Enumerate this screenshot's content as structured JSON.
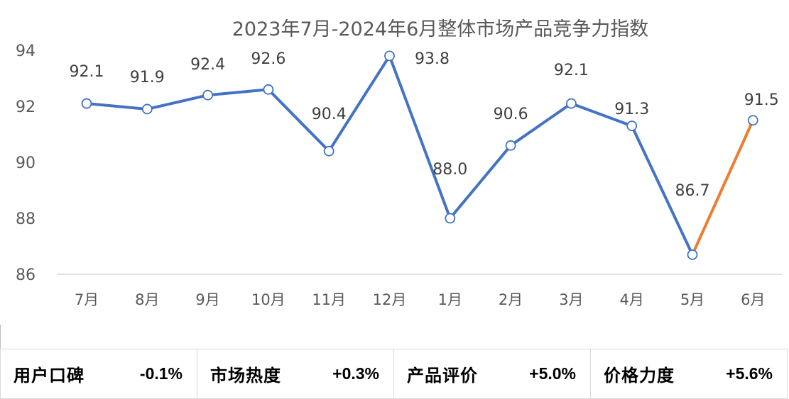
{
  "chart_data": {
    "type": "line",
    "title": "2023年7月-2024年6月整体市场产品竞争力指数",
    "categories": [
      "7月",
      "8月",
      "9月",
      "10月",
      "11月",
      "12月",
      "1月",
      "2月",
      "3月",
      "4月",
      "5月",
      "6月"
    ],
    "series": [
      {
        "values": [
          92.1,
          91.9,
          92.4,
          92.6,
          90.4,
          93.8,
          88.0,
          90.6,
          92.1,
          91.3,
          86.7,
          91.5
        ],
        "labels": [
          "92.1",
          "91.9",
          "92.4",
          "92.6",
          "90.4",
          "93.8",
          "88.0",
          "90.6",
          "92.1",
          "91.3",
          "86.7",
          "91.5"
        ],
        "color": "#4472c4",
        "highlight_last_segment_color": "#ed7d31"
      }
    ],
    "yticks": [
      "86",
      "88",
      "90",
      "92",
      "94"
    ],
    "ylim": [
      86,
      94
    ],
    "xlabel": "",
    "ylabel": "",
    "grid": false,
    "drop_lines": true,
    "legend": "none"
  },
  "metrics": [
    {
      "label": "用户口碑",
      "value": "-0.1%"
    },
    {
      "label": "市场热度",
      "value": "+0.3%"
    },
    {
      "label": "产品评价",
      "value": "+5.0%"
    },
    {
      "label": "价格力度",
      "value": "+5.6%"
    }
  ],
  "colors": {
    "line": "#4472c4",
    "highlight": "#ed7d31",
    "axis": "#d9d9d9",
    "text": "#595959"
  }
}
